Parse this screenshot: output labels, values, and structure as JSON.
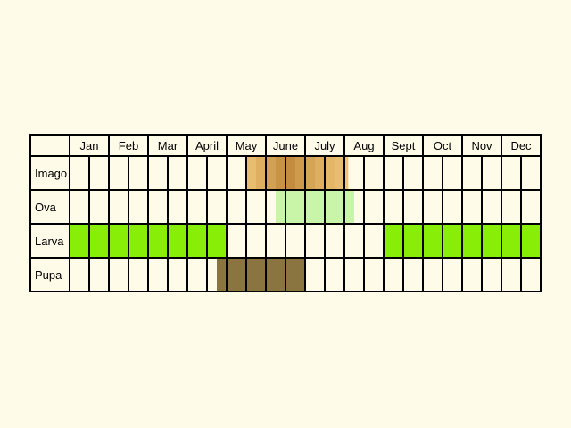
{
  "chart_data": {
    "type": "table",
    "title": "",
    "months": [
      "Jan",
      "Feb",
      "Mar",
      "Apr",
      "May",
      "June",
      "July",
      "Aug",
      "Sept",
      "Oct",
      "Nov",
      "Dec"
    ],
    "month_labels": [
      "Jan",
      "Feb",
      "Mar",
      "April",
      "May",
      "June",
      "July",
      "Aug",
      "Sept",
      "Oct",
      "Nov",
      "Dec"
    ],
    "subdivisions_per_month": 2,
    "stages": [
      {
        "name": "Imago",
        "periods": [
          {
            "start": 9.0,
            "end": 9.5,
            "intensity": 0.25
          },
          {
            "start": 9.5,
            "end": 10.0,
            "intensity": 0.45
          },
          {
            "start": 10.0,
            "end": 10.5,
            "intensity": 0.65
          },
          {
            "start": 10.5,
            "end": 11.0,
            "intensity": 0.85
          },
          {
            "start": 11.0,
            "end": 11.5,
            "intensity": 0.95
          },
          {
            "start": 11.5,
            "end": 12.0,
            "intensity": 0.75
          },
          {
            "start": 12.0,
            "end": 12.5,
            "intensity": 0.6
          },
          {
            "start": 12.5,
            "end": 13.0,
            "intensity": 0.45
          },
          {
            "start": 13.0,
            "end": 13.5,
            "intensity": 0.35
          },
          {
            "start": 13.5,
            "end": 14.0,
            "intensity": 0.25
          },
          {
            "start": 14.0,
            "end": 14.2,
            "intensity": 0.15
          }
        ]
      },
      {
        "name": "Ova",
        "periods": [
          {
            "start": 10.5,
            "end": 14.5,
            "intensity": 1.0
          }
        ]
      },
      {
        "name": "Larva",
        "periods": [
          {
            "start": 0,
            "end": 8.0,
            "intensity": 1.0
          },
          {
            "start": 16.0,
            "end": 24.0,
            "intensity": 1.0
          }
        ]
      },
      {
        "name": "Pupa",
        "periods": [
          {
            "start": 7.5,
            "end": 12.0,
            "intensity": 1.0
          }
        ]
      }
    ],
    "colors": {
      "background": "#fffbe9",
      "cell": "#fffbe9",
      "grid": "#000000",
      "Imago_light": "#f6cf80",
      "Imago_dark": "#c0883a",
      "Ova": "#c8f5a8",
      "Larva": "#88ee08",
      "Pupa": "#8a7440"
    }
  }
}
